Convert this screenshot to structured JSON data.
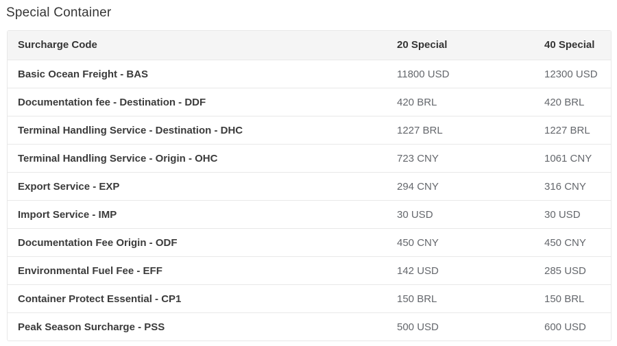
{
  "page": {
    "title": "Special Container"
  },
  "table": {
    "headers": {
      "code": "Surcharge Code",
      "special20": "20 Special",
      "special40": "40 Special"
    },
    "rows": [
      {
        "label": "Basic Ocean Freight - BAS",
        "special20": "11800 USD",
        "special40": "12300 USD"
      },
      {
        "label": "Documentation fee - Destination - DDF",
        "special20": "420 BRL",
        "special40": "420 BRL"
      },
      {
        "label": "Terminal Handling Service - Destination - DHC",
        "special20": "1227 BRL",
        "special40": "1227 BRL"
      },
      {
        "label": "Terminal Handling Service - Origin - OHC",
        "special20": "723 CNY",
        "special40": "1061 CNY"
      },
      {
        "label": "Export Service - EXP",
        "special20": "294 CNY",
        "special40": "316 CNY"
      },
      {
        "label": "Import Service - IMP",
        "special20": "30 USD",
        "special40": "30 USD"
      },
      {
        "label": "Documentation Fee Origin - ODF",
        "special20": "450 CNY",
        "special40": "450 CNY"
      },
      {
        "label": "Environmental Fuel Fee - EFF",
        "special20": "142 USD",
        "special40": "285 USD"
      },
      {
        "label": "Container Protect Essential - CP1",
        "special20": "150 BRL",
        "special40": "150 BRL"
      },
      {
        "label": "Peak Season Surcharge - PSS",
        "special20": "500 USD",
        "special40": "600 USD"
      }
    ]
  },
  "colors": {
    "header_background": "#f5f5f5",
    "border": "#e8e8e8",
    "label_text": "#3b3b3b",
    "value_text": "#64676c",
    "title_text": "#353535"
  }
}
